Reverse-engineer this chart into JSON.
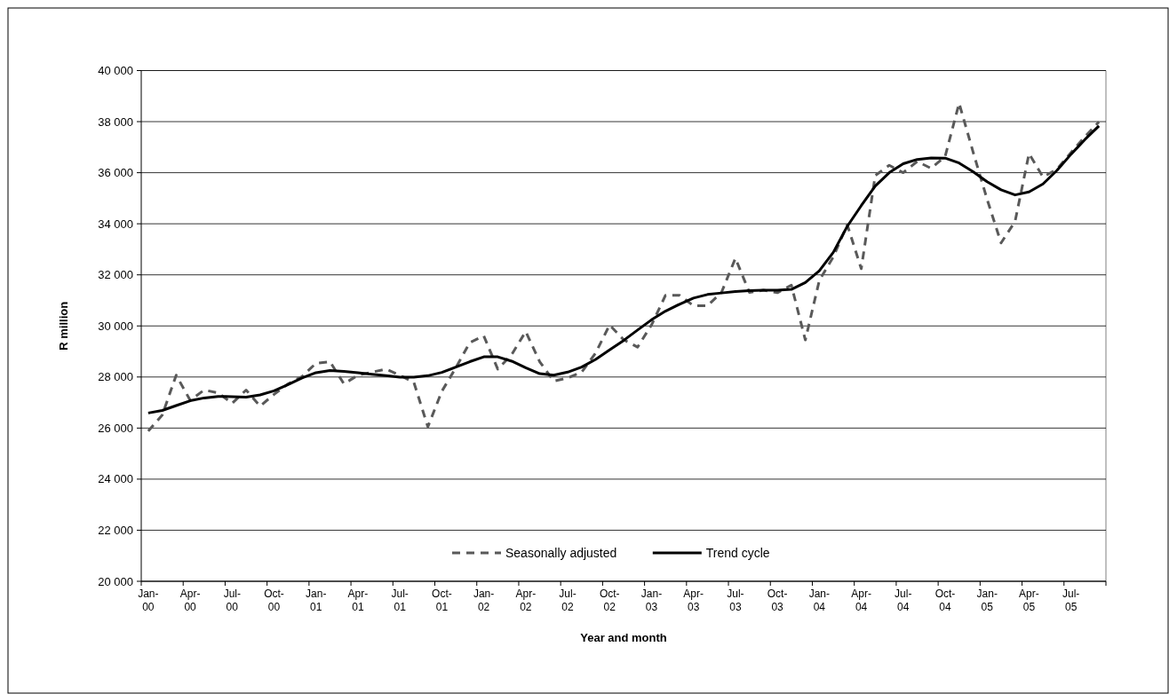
{
  "chart_data": {
    "type": "line",
    "xlabel": "Year and month",
    "ylabel": "R million",
    "categories": [
      "Jan-00",
      null,
      null,
      "Apr-00",
      null,
      null,
      "Jul-00",
      null,
      null,
      "Oct-00",
      null,
      null,
      "Jan-01",
      null,
      null,
      "Apr-01",
      null,
      null,
      "Jul-01",
      null,
      null,
      "Oct-01",
      null,
      null,
      "Jan-02",
      null,
      null,
      "Apr-02",
      null,
      null,
      "Jul-02",
      null,
      null,
      "Oct-02",
      null,
      null,
      "Jan-03",
      null,
      null,
      "Apr-03",
      null,
      null,
      "Jul-03",
      null,
      null,
      "Oct-03",
      null,
      null,
      "Jan-04",
      null,
      null,
      "Apr-04",
      null,
      null,
      "Jul-04",
      null,
      null,
      "Oct-04",
      null,
      null,
      "Jan-05",
      null,
      null,
      "Apr-05",
      null,
      null,
      "Jul-05",
      null,
      null
    ],
    "series": [
      {
        "name": "Seasonally adjusted",
        "color": "#595959",
        "line_style": "dashed",
        "values": [
          25880,
          26510,
          28070,
          27090,
          27490,
          27380,
          26970,
          27490,
          26860,
          27320,
          27730,
          28020,
          28540,
          28600,
          27730,
          28070,
          28190,
          28310,
          28070,
          27790,
          26050,
          27440,
          28360,
          29350,
          29610,
          28310,
          28880,
          29780,
          28600,
          27840,
          27960,
          28190,
          28940,
          30040,
          29460,
          29170,
          30040,
          31200,
          31200,
          30790,
          30790,
          31310,
          32650,
          31310,
          31400,
          31300,
          31600,
          29450,
          31780,
          32700,
          33960,
          32240,
          35890,
          36290,
          36000,
          36440,
          36170,
          36640,
          38720,
          36810,
          34960,
          33250,
          34090,
          36750,
          35830,
          36140,
          36790,
          37410,
          37990
        ]
      },
      {
        "name": "Trend cycle",
        "color": "#000000",
        "line_style": "solid",
        "values": [
          26590,
          26690,
          26880,
          27070,
          27180,
          27240,
          27230,
          27210,
          27300,
          27460,
          27700,
          27960,
          28170,
          28250,
          28220,
          28170,
          28110,
          28050,
          27990,
          27990,
          28050,
          28180,
          28390,
          28600,
          28790,
          28790,
          28620,
          28360,
          28130,
          28070,
          28190,
          28390,
          28690,
          29060,
          29430,
          29840,
          30240,
          30580,
          30850,
          31090,
          31230,
          31290,
          31350,
          31380,
          31400,
          31400,
          31430,
          31700,
          32160,
          32880,
          33900,
          34710,
          35480,
          36000,
          36350,
          36520,
          36580,
          36570,
          36380,
          36040,
          35650,
          35330,
          35130,
          35250,
          35560,
          36090,
          36720,
          37300,
          37830
        ]
      }
    ],
    "ylim": [
      20000,
      40000
    ],
    "yticks": [
      {
        "value": 20000,
        "label": "20 000"
      },
      {
        "value": 22000,
        "label": "22 000"
      },
      {
        "value": 24000,
        "label": "24 000"
      },
      {
        "value": 26000,
        "label": "26 000"
      },
      {
        "value": 28000,
        "label": "28 000"
      },
      {
        "value": 30000,
        "label": "30 000"
      },
      {
        "value": 32000,
        "label": "32 000"
      },
      {
        "value": 34000,
        "label": "34 000"
      },
      {
        "value": 36000,
        "label": "36 000"
      },
      {
        "value": 38000,
        "label": "38 000"
      },
      {
        "value": 40000,
        "label": "40 000"
      }
    ],
    "grid": "y",
    "legend": "bottom"
  }
}
